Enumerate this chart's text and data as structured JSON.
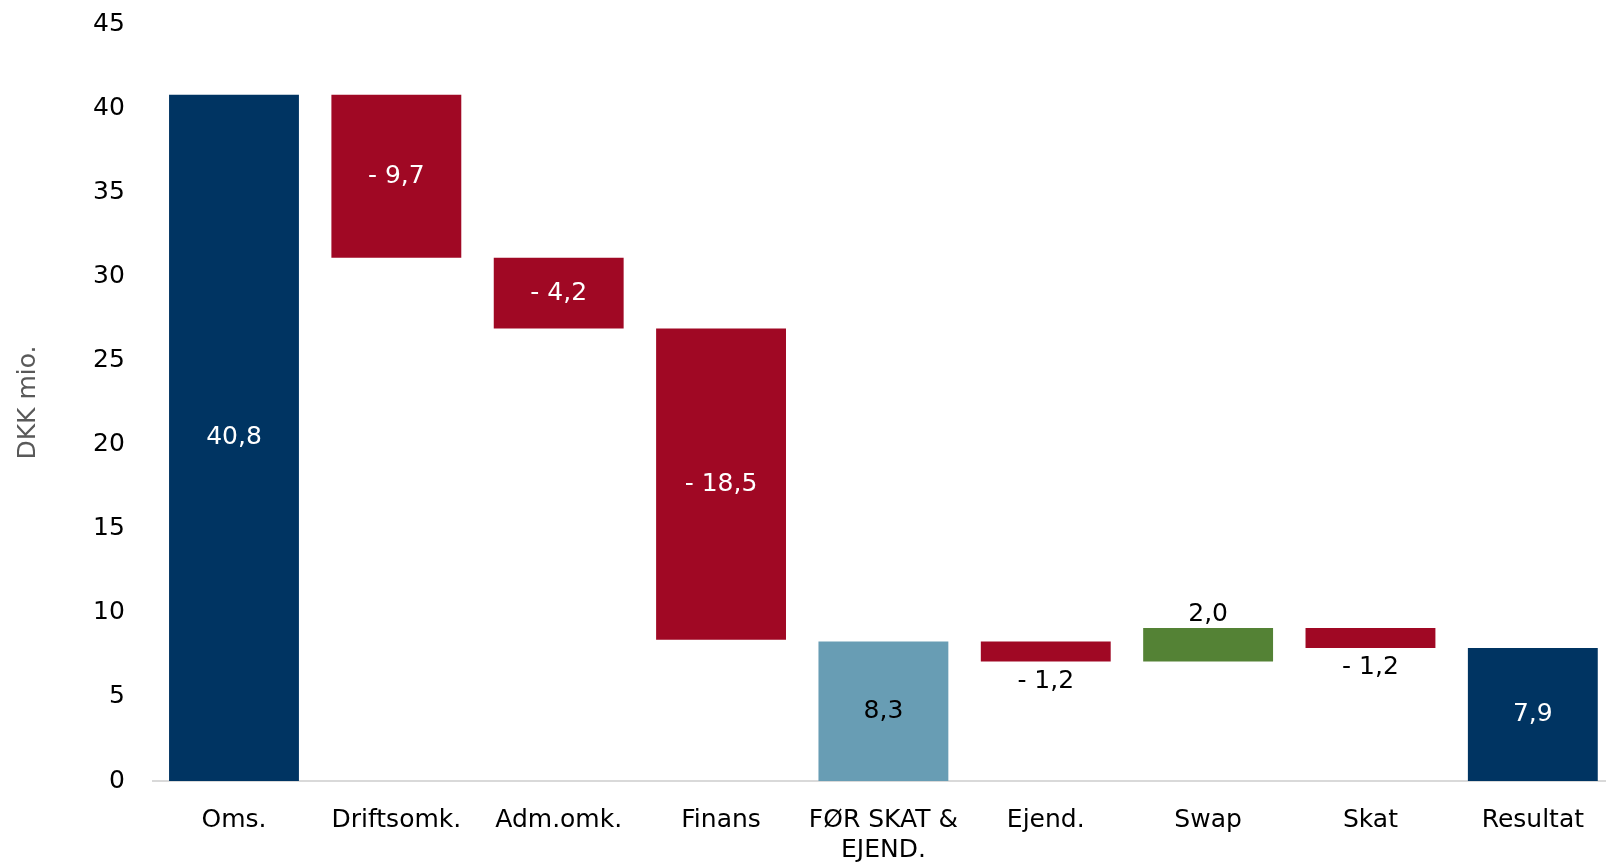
{
  "chart_data": {
    "type": "bar",
    "ylabel": "DKK mio.",
    "categories": [
      "Oms.",
      "Driftsomk.",
      "Adm.omk.",
      "Finans",
      "FØR SKAT & EJEND.",
      "Ejend.",
      "Swap",
      "Skat",
      "Resultat"
    ],
    "values": [
      40.8,
      -9.7,
      -4.2,
      -18.5,
      8.3,
      -1.2,
      2.0,
      -1.2,
      7.9
    ],
    "base": [
      0,
      40.8,
      31.1,
      26.9,
      0,
      8.3,
      7.1,
      9.1,
      0
    ],
    "colors": [
      "#003462",
      "#a00824",
      "#a00824",
      "#a00824",
      "#689db4",
      "#a00824",
      "#548235",
      "#a00824",
      "#003462"
    ],
    "value_labels": [
      "40,8",
      "- 9,7",
      "- 4,2",
      "- 18,5",
      "8,3",
      "- 1,2",
      "2,0",
      "- 1,2",
      "7,9"
    ],
    "ylim": [
      0,
      45
    ],
    "yticks": [
      0,
      5,
      10,
      15,
      20,
      25,
      30,
      35,
      40,
      45
    ]
  }
}
